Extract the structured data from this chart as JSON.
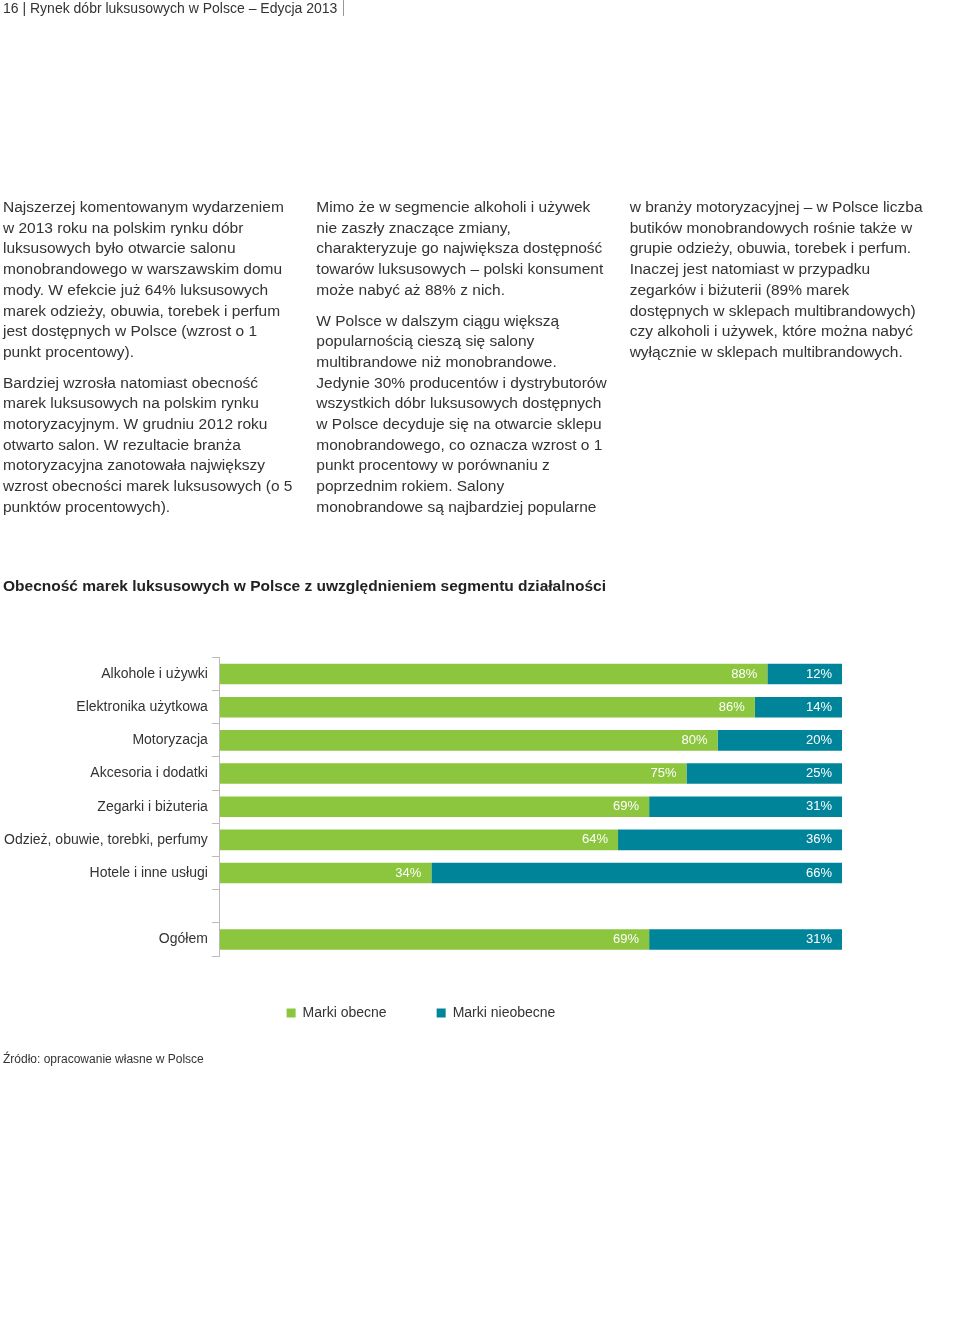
{
  "chart_data": {
    "type": "bar",
    "orientation": "horizontal",
    "stacked": true,
    "title": "Obecność marek luksusowych w Polsce z uwzględnieniem segmentu działalności",
    "categories": [
      "Alkohole i używki",
      "Elektronika użytkowa",
      "Motoryzacja",
      "Akcesoria i dodatki",
      "Zegarki i biżuteria",
      "Odzież, obuwie, torebki, perfumy",
      "Hotele i inne usługi",
      null,
      "Ogółem"
    ],
    "series": [
      {
        "name": "Marki obecne",
        "color": "#8cc63f",
        "values": [
          88,
          86,
          80,
          75,
          69,
          64,
          34,
          null,
          69
        ],
        "value_labels": [
          "88%",
          "86%",
          "80%",
          "75%",
          "69%",
          "64%",
          "34%",
          null,
          "69%"
        ]
      },
      {
        "name": "Marki nieobecne",
        "color": "#00849a",
        "values": [
          12,
          14,
          20,
          25,
          31,
          36,
          66,
          null,
          31
        ],
        "value_labels": [
          "12%",
          "14%",
          "20%",
          "25%",
          "31%",
          "36%",
          "66%",
          null,
          "31%"
        ]
      }
    ],
    "xlim": [
      0,
      100
    ],
    "tick_labels": "y",
    "legend": "bottom",
    "grid": false,
    "annotations": [
      "16 | Rynek dóbr luksusowych w Polsce – Edycja 2013",
      "Najszerzej komentowanym wydarzeniem w 2013 roku na polskim rynku dóbr luksusowych było otwarcie salonu monobrandowego w warszawskim domu mody. W efekcie już 64% luksusowych marek odzieży, obuwia, torebek i perfum jest dostępnych w Polsce (wzrost o 1 punkt procentowy).",
      "Bardziej wzrosła natomiast obecność marek luksusowych na polskim rynku motoryzacyjnym. W grudniu 2012 roku otwarto salon. W rezultacie branża motoryzacyjna zanotowała największy wzrost obecności marek luksusowych (o 5 punktów procentowych).",
      "Mimo że w segmencie alkoholi i używek nie zaszły znaczące zmiany, charakteryzuje go największa dostępność towarów luksusowych – polski konsument może nabyć aż 88% z nich.",
      "W Polsce w dalszym ciągu większą popularnością cieszą się salony multibrandowe niż monobrandowe. Jedynie 30% producentów i dystrybutorów wszystkich dóbr luksusowych dostępnych w Polsce decyduje się na otwarcie sklepu monobrandowego, co oznacza wzrost o 1 punkt procentowy w porównaniu z poprzednim rokiem. Salony monobrandowe są najbardziej popularne w branży motoryzacyjnej – w Polsce liczba butików monobrandowych rośnie także w grupie odzieży, obuwia, torebek i perfum. Inaczej jest natomiast w przypadku zegarków i biżuterii (89% marek dostępnych w sklepach multibrandowych) czy alkoholi i używek, które można nabyć wyłącznie w sklepach multibrandowych.",
      "Źródło: opracowanie własne w Polsce"
    ]
  }
}
